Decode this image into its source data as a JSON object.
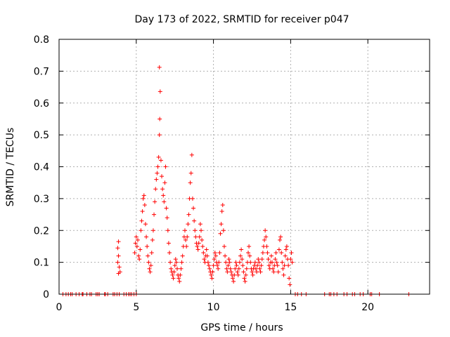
{
  "chart_data": {
    "type": "scatter",
    "title": "Day 173 of 2022, SRMTID for receiver p047",
    "xlabel": "GPS time / hours",
    "ylabel": "SRMTID / TECUs",
    "xlim": [
      0,
      24
    ],
    "ylim": [
      0,
      0.8
    ],
    "grid": true,
    "marker": "+",
    "color": "#ff0000",
    "x_ticks": [
      0,
      5,
      10,
      15,
      20
    ],
    "y_ticks": [
      0,
      0.1,
      0.2,
      0.3,
      0.4,
      0.5,
      0.6,
      0.7,
      0.8
    ],
    "x_tick_labels": [
      "0",
      "5",
      "10",
      "15",
      "20"
    ],
    "y_tick_labels": [
      "0",
      "0.1",
      "0.2",
      "0.3",
      "0.4",
      "0.5",
      "0.6",
      "0.7",
      "0.8"
    ],
    "series": [
      {
        "name": "SRMTID",
        "points": [
          [
            0.25,
            0
          ],
          [
            0.45,
            0
          ],
          [
            0.6,
            0
          ],
          [
            0.75,
            0
          ],
          [
            0.85,
            0
          ],
          [
            1.1,
            0
          ],
          [
            1.3,
            0
          ],
          [
            1.5,
            0
          ],
          [
            1.55,
            0
          ],
          [
            1.8,
            0
          ],
          [
            2.0,
            0
          ],
          [
            2.1,
            0
          ],
          [
            2.4,
            0
          ],
          [
            2.5,
            0
          ],
          [
            2.6,
            0
          ],
          [
            2.95,
            0
          ],
          [
            3.0,
            0
          ],
          [
            3.15,
            0
          ],
          [
            3.5,
            0
          ],
          [
            3.6,
            0
          ],
          [
            3.75,
            0
          ],
          [
            3.9,
            0
          ],
          [
            4.2,
            0
          ],
          [
            4.35,
            0
          ],
          [
            4.5,
            0
          ],
          [
            4.6,
            0
          ],
          [
            4.7,
            0
          ],
          [
            4.85,
            0
          ],
          [
            5.0,
            0
          ],
          [
            15.3,
            0
          ],
          [
            15.45,
            0
          ],
          [
            15.7,
            0
          ],
          [
            16.0,
            0
          ],
          [
            17.2,
            0
          ],
          [
            17.5,
            0
          ],
          [
            17.6,
            0
          ],
          [
            17.8,
            0
          ],
          [
            18.0,
            0
          ],
          [
            18.45,
            0
          ],
          [
            18.65,
            0
          ],
          [
            19.0,
            0
          ],
          [
            19.15,
            0
          ],
          [
            19.5,
            0
          ],
          [
            19.7,
            0
          ],
          [
            20.15,
            0
          ],
          [
            20.25,
            0
          ],
          [
            20.75,
            0
          ],
          [
            22.65,
            0
          ],
          [
            3.85,
            0.165
          ],
          [
            3.8,
            0.145
          ],
          [
            3.85,
            0.12
          ],
          [
            3.8,
            0.1
          ],
          [
            3.9,
            0.085
          ],
          [
            3.95,
            0.07
          ],
          [
            3.85,
            0.065
          ],
          [
            4.9,
            0.13
          ],
          [
            4.95,
            0.16
          ],
          [
            5.0,
            0.18
          ],
          [
            5.05,
            0.15
          ],
          [
            5.1,
            0.17
          ],
          [
            5.15,
            0.12
          ],
          [
            5.2,
            0.11
          ],
          [
            5.25,
            0.14
          ],
          [
            5.3,
            0.2
          ],
          [
            5.35,
            0.23
          ],
          [
            5.4,
            0.26
          ],
          [
            5.45,
            0.3
          ],
          [
            5.5,
            0.31
          ],
          [
            5.55,
            0.28
          ],
          [
            5.6,
            0.22
          ],
          [
            5.65,
            0.18
          ],
          [
            5.7,
            0.15
          ],
          [
            5.75,
            0.12
          ],
          [
            5.8,
            0.1
          ],
          [
            5.85,
            0.08
          ],
          [
            5.9,
            0.07
          ],
          [
            5.95,
            0.09
          ],
          [
            6.0,
            0.13
          ],
          [
            6.05,
            0.17
          ],
          [
            6.1,
            0.2
          ],
          [
            6.15,
            0.25
          ],
          [
            6.2,
            0.29
          ],
          [
            6.25,
            0.33
          ],
          [
            6.3,
            0.36
          ],
          [
            6.35,
            0.38
          ],
          [
            6.4,
            0.4
          ],
          [
            6.45,
            0.43
          ],
          [
            6.5,
            0.5
          ],
          [
            6.52,
            0.55
          ],
          [
            6.55,
            0.636
          ],
          [
            6.5,
            0.712
          ],
          [
            6.6,
            0.42
          ],
          [
            6.65,
            0.37
          ],
          [
            6.7,
            0.33
          ],
          [
            6.75,
            0.31
          ],
          [
            6.8,
            0.29
          ],
          [
            6.85,
            0.35
          ],
          [
            6.9,
            0.4
          ],
          [
            6.95,
            0.27
          ],
          [
            7.0,
            0.24
          ],
          [
            7.05,
            0.2
          ],
          [
            7.1,
            0.16
          ],
          [
            7.15,
            0.13
          ],
          [
            7.2,
            0.1
          ],
          [
            7.25,
            0.08
          ],
          [
            7.3,
            0.07
          ],
          [
            7.35,
            0.06
          ],
          [
            7.4,
            0.05
          ],
          [
            7.45,
            0.07
          ],
          [
            7.5,
            0.09
          ],
          [
            7.55,
            0.11
          ],
          [
            7.6,
            0.1
          ],
          [
            7.65,
            0.08
          ],
          [
            7.7,
            0.06
          ],
          [
            7.75,
            0.05
          ],
          [
            7.8,
            0.04
          ],
          [
            7.85,
            0.06
          ],
          [
            7.9,
            0.08
          ],
          [
            7.95,
            0.1
          ],
          [
            8.0,
            0.12
          ],
          [
            8.05,
            0.15
          ],
          [
            8.1,
            0.18
          ],
          [
            8.15,
            0.2
          ],
          [
            8.2,
            0.17
          ],
          [
            8.25,
            0.15
          ],
          [
            8.3,
            0.18
          ],
          [
            8.35,
            0.22
          ],
          [
            8.4,
            0.25
          ],
          [
            8.45,
            0.3
          ],
          [
            8.5,
            0.35
          ],
          [
            8.55,
            0.38
          ],
          [
            8.6,
            0.437
          ],
          [
            8.65,
            0.3
          ],
          [
            8.7,
            0.27
          ],
          [
            8.75,
            0.23
          ],
          [
            8.8,
            0.2
          ],
          [
            8.85,
            0.18
          ],
          [
            8.9,
            0.16
          ],
          [
            8.95,
            0.15
          ],
          [
            9.0,
            0.14
          ],
          [
            9.05,
            0.16
          ],
          [
            9.1,
            0.18
          ],
          [
            9.15,
            0.22
          ],
          [
            9.2,
            0.2
          ],
          [
            9.25,
            0.17
          ],
          [
            9.3,
            0.15
          ],
          [
            9.35,
            0.13
          ],
          [
            9.4,
            0.11
          ],
          [
            9.45,
            0.1
          ],
          [
            9.5,
            0.12
          ],
          [
            9.55,
            0.14
          ],
          [
            9.6,
            0.12
          ],
          [
            9.65,
            0.1
          ],
          [
            9.7,
            0.09
          ],
          [
            9.75,
            0.08
          ],
          [
            9.8,
            0.07
          ],
          [
            9.85,
            0.06
          ],
          [
            9.9,
            0.05
          ],
          [
            9.95,
            0.07
          ],
          [
            10.0,
            0.09
          ],
          [
            10.05,
            0.11
          ],
          [
            10.1,
            0.13
          ],
          [
            10.15,
            0.12
          ],
          [
            10.2,
            0.1
          ],
          [
            10.25,
            0.09
          ],
          [
            10.3,
            0.08
          ],
          [
            10.35,
            0.1
          ],
          [
            10.4,
            0.13
          ],
          [
            10.45,
            0.19
          ],
          [
            10.5,
            0.22
          ],
          [
            10.55,
            0.26
          ],
          [
            10.6,
            0.28
          ],
          [
            10.65,
            0.2
          ],
          [
            10.7,
            0.15
          ],
          [
            10.75,
            0.12
          ],
          [
            10.8,
            0.1
          ],
          [
            10.85,
            0.08
          ],
          [
            10.9,
            0.07
          ],
          [
            10.95,
            0.09
          ],
          [
            11.0,
            0.11
          ],
          [
            11.05,
            0.1
          ],
          [
            11.1,
            0.08
          ],
          [
            11.15,
            0.07
          ],
          [
            11.2,
            0.06
          ],
          [
            11.25,
            0.05
          ],
          [
            11.3,
            0.04
          ],
          [
            11.35,
            0.06
          ],
          [
            11.4,
            0.08
          ],
          [
            11.45,
            0.1
          ],
          [
            11.5,
            0.09
          ],
          [
            11.55,
            0.07
          ],
          [
            11.6,
            0.06
          ],
          [
            11.65,
            0.08
          ],
          [
            11.7,
            0.1
          ],
          [
            11.75,
            0.12
          ],
          [
            11.8,
            0.14
          ],
          [
            11.85,
            0.11
          ],
          [
            11.9,
            0.09
          ],
          [
            11.95,
            0.07
          ],
          [
            12.0,
            0.05
          ],
          [
            12.05,
            0.04
          ],
          [
            12.1,
            0.06
          ],
          [
            12.15,
            0.08
          ],
          [
            12.2,
            0.1
          ],
          [
            12.25,
            0.13
          ],
          [
            12.3,
            0.15
          ],
          [
            12.35,
            0.12
          ],
          [
            12.4,
            0.1
          ],
          [
            12.45,
            0.08
          ],
          [
            12.5,
            0.07
          ],
          [
            12.55,
            0.06
          ],
          [
            12.6,
            0.08
          ],
          [
            12.65,
            0.09
          ],
          [
            12.7,
            0.1
          ],
          [
            12.75,
            0.08
          ],
          [
            12.8,
            0.07
          ],
          [
            12.85,
            0.09
          ],
          [
            12.9,
            0.11
          ],
          [
            12.95,
            0.1
          ],
          [
            13.0,
            0.08
          ],
          [
            13.05,
            0.07
          ],
          [
            13.1,
            0.09
          ],
          [
            13.15,
            0.11
          ],
          [
            13.2,
            0.13
          ],
          [
            13.25,
            0.15
          ],
          [
            13.3,
            0.17
          ],
          [
            13.35,
            0.2
          ],
          [
            13.4,
            0.18
          ],
          [
            13.45,
            0.15
          ],
          [
            13.5,
            0.13
          ],
          [
            13.55,
            0.11
          ],
          [
            13.6,
            0.09
          ],
          [
            13.65,
            0.08
          ],
          [
            13.7,
            0.1
          ],
          [
            13.75,
            0.12
          ],
          [
            13.8,
            0.1
          ],
          [
            13.85,
            0.08
          ],
          [
            13.9,
            0.07
          ],
          [
            13.95,
            0.09
          ],
          [
            14.0,
            0.11
          ],
          [
            14.05,
            0.13
          ],
          [
            14.1,
            0.1
          ],
          [
            14.15,
            0.09
          ],
          [
            14.2,
            0.07
          ],
          [
            14.25,
            0.14
          ],
          [
            14.3,
            0.17
          ],
          [
            14.35,
            0.18
          ],
          [
            14.4,
            0.13
          ],
          [
            14.45,
            0.1
          ],
          [
            14.5,
            0.08
          ],
          [
            14.55,
            0.06
          ],
          [
            14.6,
            0.09
          ],
          [
            14.65,
            0.12
          ],
          [
            14.7,
            0.14
          ],
          [
            14.75,
            0.15
          ],
          [
            14.8,
            0.11
          ],
          [
            14.85,
            0.09
          ],
          [
            14.9,
            0.05
          ],
          [
            14.95,
            0.03
          ],
          [
            15.0,
            0.11
          ],
          [
            15.05,
            0.13
          ],
          [
            15.1,
            0.1
          ]
        ]
      }
    ]
  }
}
